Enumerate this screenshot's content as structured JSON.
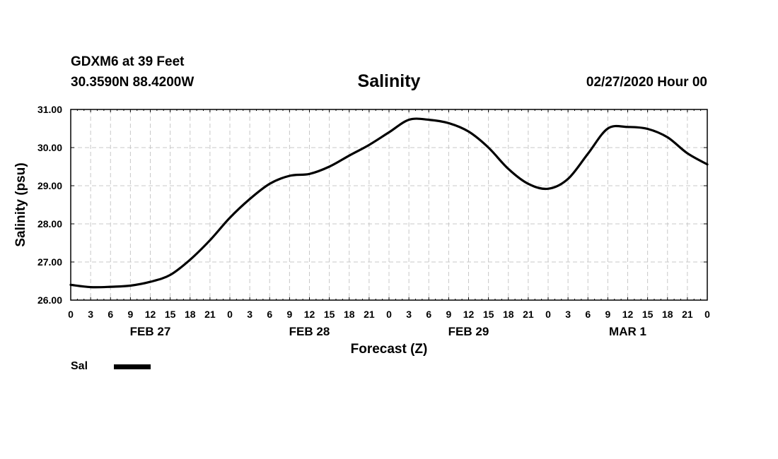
{
  "header": {
    "station": "GDXM6 at 39 Feet",
    "coords": "30.3590N 88.4200W",
    "forecast_time": "02/27/2020 Hour 00"
  },
  "chart_data": {
    "type": "line",
    "title": "Salinity",
    "xlabel": "Forecast (Z)",
    "ylabel": "Salinity (psu)",
    "ylim": [
      26.0,
      31.0
    ],
    "y_ticks": [
      "26.00",
      "27.00",
      "28.00",
      "29.00",
      "30.00",
      "31.00"
    ],
    "x_range_hours": [
      0,
      96
    ],
    "x_tick_labels": [
      "0",
      "3",
      "6",
      "9",
      "12",
      "15",
      "18",
      "21",
      "0",
      "3",
      "6",
      "9",
      "12",
      "15",
      "18",
      "21",
      "0",
      "3",
      "6",
      "9",
      "12",
      "15",
      "18",
      "21",
      "0",
      "3",
      "6",
      "9",
      "12",
      "15",
      "18",
      "21",
      "0"
    ],
    "day_labels": [
      {
        "label": "FEB 27",
        "hour": 12
      },
      {
        "label": "FEB 28",
        "hour": 36
      },
      {
        "label": "FEB 29",
        "hour": 60
      },
      {
        "label": "MAR 1",
        "hour": 84
      }
    ],
    "grid": true,
    "legend": "bottom-left",
    "series": [
      {
        "name": "Sal",
        "color": "#000000",
        "x": [
          0,
          3,
          6,
          9,
          12,
          15,
          18,
          21,
          24,
          27,
          30,
          33,
          36,
          39,
          42,
          45,
          48,
          51,
          54,
          57,
          60,
          63,
          66,
          69,
          72,
          75,
          78,
          81,
          84,
          87,
          90,
          93,
          96
        ],
        "values": [
          26.4,
          26.34,
          26.35,
          26.38,
          26.48,
          26.66,
          27.06,
          27.57,
          28.16,
          28.65,
          29.05,
          29.26,
          29.31,
          29.5,
          29.79,
          30.07,
          30.4,
          30.73,
          30.73,
          30.64,
          30.42,
          30.0,
          29.44,
          29.05,
          28.92,
          29.18,
          29.84,
          30.5,
          30.54,
          30.49,
          30.27,
          29.85,
          29.56
        ]
      }
    ]
  }
}
